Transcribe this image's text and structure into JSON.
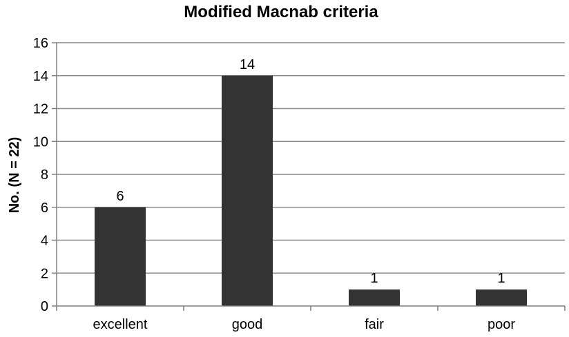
{
  "chart_data": {
    "type": "bar",
    "title": "Modified Macnab criteria",
    "xlabel": "",
    "ylabel": "No. (N = 22)",
    "categories": [
      "excellent",
      "good",
      "fair",
      "poor"
    ],
    "values": [
      6,
      14,
      1,
      1
    ],
    "data_labels": [
      "6",
      "14",
      "1",
      "1"
    ],
    "ylim": [
      0,
      16
    ],
    "yticks": [
      0,
      2,
      4,
      6,
      8,
      10,
      12,
      14,
      16
    ],
    "grid": true,
    "legend": "none",
    "bar_color": "#333333"
  }
}
